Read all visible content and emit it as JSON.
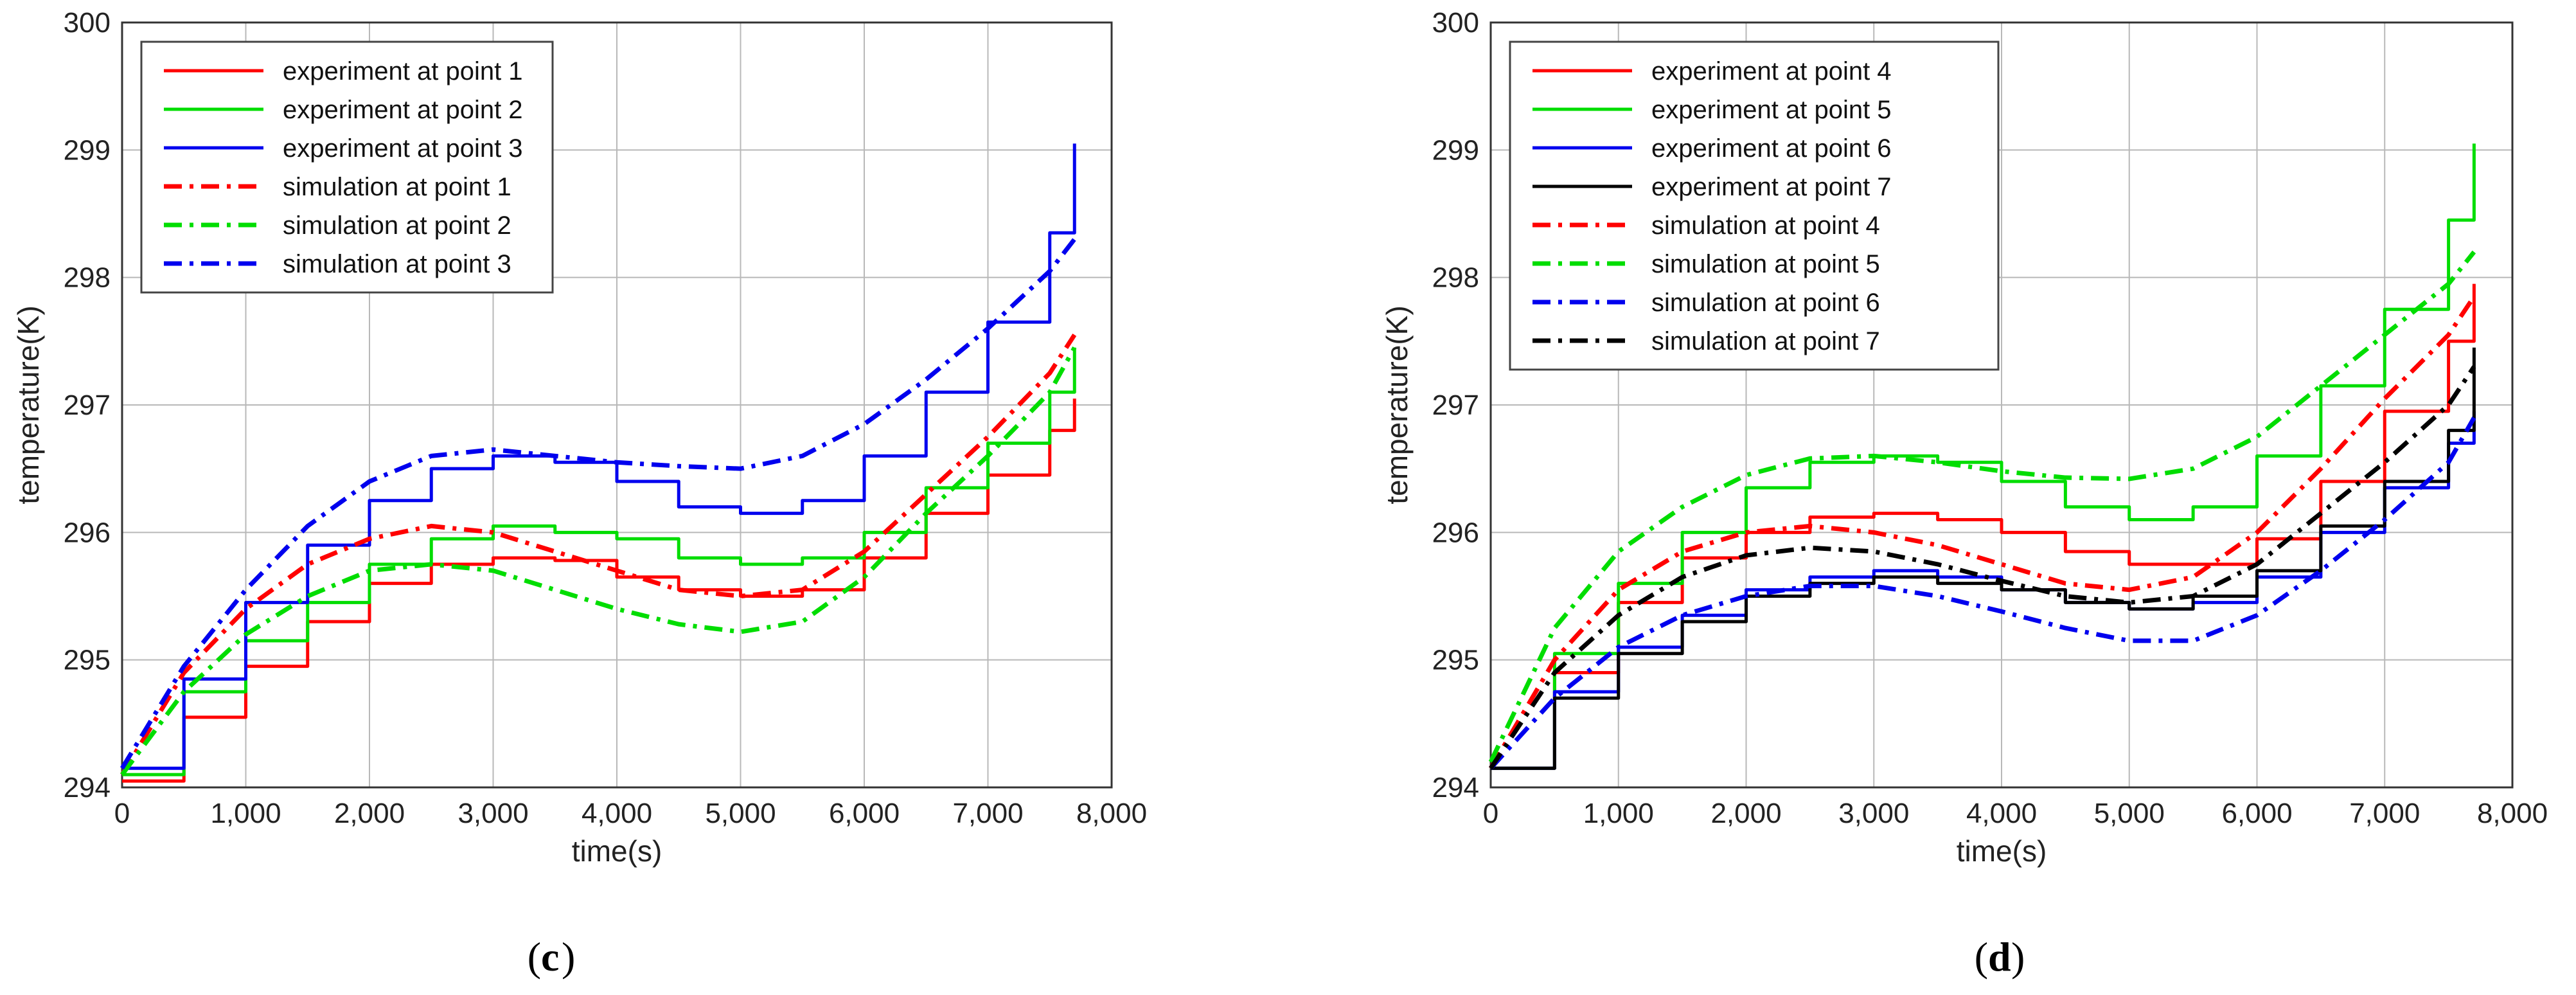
{
  "chart_data": [
    {
      "type": "line",
      "caption": {
        "open": "(",
        "letter": "c",
        "close": ")"
      },
      "xlabel": "time(s)",
      "ylabel": "temperature(K)",
      "xlim": [
        0,
        8000
      ],
      "ylim": [
        294,
        300
      ],
      "xticks": [
        0,
        1000,
        2000,
        3000,
        4000,
        5000,
        6000,
        7000,
        8000
      ],
      "xtick_labels": [
        "0",
        "1,000",
        "2,000",
        "3,000",
        "4,000",
        "5,000",
        "6,000",
        "7,000",
        "8,000"
      ],
      "yticks": [
        294,
        295,
        296,
        297,
        298,
        299,
        300
      ],
      "ytick_labels": [
        "294",
        "295",
        "296",
        "297",
        "298",
        "299",
        "300"
      ],
      "grid": true,
      "legend_position": "top-left",
      "series": [
        {
          "name": "experiment at point 1",
          "color": "#ff0000",
          "style": "solid",
          "x": [
            0,
            500,
            1000,
            1500,
            2000,
            2500,
            3000,
            3500,
            4000,
            4500,
            5000,
            5500,
            6000,
            6500,
            7000,
            7500,
            7700
          ],
          "y": [
            294.05,
            294.55,
            294.95,
            295.3,
            295.6,
            295.75,
            295.8,
            295.78,
            295.65,
            295.55,
            295.5,
            295.55,
            295.8,
            296.15,
            296.45,
            296.8,
            297.05
          ]
        },
        {
          "name": "experiment at point 2",
          "color": "#00dd00",
          "style": "solid",
          "x": [
            0,
            500,
            1000,
            1500,
            2000,
            2500,
            3000,
            3500,
            4000,
            4500,
            5000,
            5500,
            6000,
            6500,
            7000,
            7500,
            7700
          ],
          "y": [
            294.1,
            294.75,
            295.15,
            295.45,
            295.75,
            295.95,
            296.05,
            296.0,
            295.95,
            295.8,
            295.75,
            295.8,
            296.0,
            296.35,
            296.7,
            297.1,
            297.45
          ]
        },
        {
          "name": "experiment at point 3",
          "color": "#0000ee",
          "style": "solid",
          "x": [
            0,
            500,
            1000,
            1500,
            2000,
            2500,
            3000,
            3500,
            4000,
            4500,
            5000,
            5500,
            6000,
            6500,
            7000,
            7500,
            7700
          ],
          "y": [
            294.15,
            294.85,
            295.45,
            295.9,
            296.25,
            296.5,
            296.6,
            296.55,
            296.4,
            296.2,
            296.15,
            296.25,
            296.6,
            297.1,
            297.65,
            298.35,
            299.05
          ]
        },
        {
          "name": "simulation at point 1",
          "color": "#ff0000",
          "style": "dashdot",
          "x": [
            0,
            500,
            1000,
            1500,
            2000,
            2500,
            3000,
            3500,
            4000,
            4500,
            5000,
            5500,
            6000,
            6500,
            7000,
            7500,
            7700
          ],
          "y": [
            294.1,
            294.9,
            295.4,
            295.75,
            295.95,
            296.05,
            296.0,
            295.85,
            295.7,
            295.55,
            295.5,
            295.55,
            295.85,
            296.3,
            296.75,
            297.25,
            297.55
          ]
        },
        {
          "name": "simulation at point 2",
          "color": "#00dd00",
          "style": "dashdot",
          "x": [
            0,
            500,
            1000,
            1500,
            2000,
            2500,
            3000,
            3500,
            4000,
            4500,
            5000,
            5500,
            6000,
            6500,
            7000,
            7500,
            7700
          ],
          "y": [
            294.1,
            294.75,
            295.2,
            295.5,
            295.7,
            295.75,
            295.7,
            295.55,
            295.4,
            295.28,
            295.22,
            295.3,
            295.65,
            296.15,
            296.6,
            297.1,
            297.45
          ]
        },
        {
          "name": "simulation at point 3",
          "color": "#0000ee",
          "style": "dashdot",
          "x": [
            0,
            500,
            1000,
            1500,
            2000,
            2500,
            3000,
            3500,
            4000,
            4500,
            5000,
            5500,
            6000,
            6500,
            7000,
            7500,
            7700
          ],
          "y": [
            294.15,
            294.95,
            295.55,
            296.05,
            296.4,
            296.6,
            296.65,
            296.6,
            296.55,
            296.52,
            296.5,
            296.6,
            296.85,
            297.2,
            297.6,
            298.05,
            298.3
          ]
        }
      ]
    },
    {
      "type": "line",
      "caption": {
        "open": "(",
        "letter": "d",
        "close": ")"
      },
      "xlabel": "time(s)",
      "ylabel": "temperature(K)",
      "xlim": [
        0,
        8000
      ],
      "ylim": [
        294,
        300
      ],
      "xticks": [
        0,
        1000,
        2000,
        3000,
        4000,
        5000,
        6000,
        7000,
        8000
      ],
      "xtick_labels": [
        "0",
        "1,000",
        "2,000",
        "3,000",
        "4,000",
        "5,000",
        "6,000",
        "7,000",
        "8,000"
      ],
      "yticks": [
        294,
        295,
        296,
        297,
        298,
        299,
        300
      ],
      "ytick_labels": [
        "294",
        "295",
        "296",
        "297",
        "298",
        "299",
        "300"
      ],
      "grid": true,
      "legend_position": "top-left",
      "series": [
        {
          "name": "experiment at point 4",
          "color": "#ff0000",
          "style": "solid",
          "x": [
            0,
            500,
            1000,
            1500,
            2000,
            2500,
            3000,
            3500,
            4000,
            4500,
            5000,
            5500,
            6000,
            6500,
            7000,
            7500,
            7700
          ],
          "y": [
            294.15,
            294.9,
            295.45,
            295.8,
            296.0,
            296.12,
            296.15,
            296.1,
            296.0,
            295.85,
            295.75,
            295.75,
            295.95,
            296.4,
            296.95,
            297.5,
            297.95
          ]
        },
        {
          "name": "experiment at point 5",
          "color": "#00dd00",
          "style": "solid",
          "x": [
            0,
            500,
            1000,
            1500,
            2000,
            2500,
            3000,
            3500,
            4000,
            4500,
            5000,
            5500,
            6000,
            6500,
            7000,
            7500,
            7700
          ],
          "y": [
            294.15,
            295.05,
            295.6,
            296.0,
            296.35,
            296.55,
            296.6,
            296.55,
            296.4,
            296.2,
            296.1,
            296.2,
            296.6,
            297.15,
            297.75,
            298.45,
            299.05
          ]
        },
        {
          "name": "experiment at point 6",
          "color": "#0000ee",
          "style": "solid",
          "x": [
            0,
            500,
            1000,
            1500,
            2000,
            2500,
            3000,
            3500,
            4000,
            4500,
            5000,
            5500,
            6000,
            6500,
            7000,
            7500,
            7700
          ],
          "y": [
            294.15,
            294.75,
            295.1,
            295.35,
            295.55,
            295.65,
            295.7,
            295.65,
            295.55,
            295.45,
            295.4,
            295.45,
            295.65,
            296.0,
            296.35,
            296.7,
            296.95
          ]
        },
        {
          "name": "experiment at point 7",
          "color": "#000000",
          "style": "solid",
          "x": [
            0,
            500,
            1000,
            1500,
            2000,
            2500,
            3000,
            3500,
            4000,
            4500,
            5000,
            5500,
            6000,
            6500,
            7000,
            7500,
            7700
          ],
          "y": [
            294.15,
            294.7,
            295.05,
            295.3,
            295.5,
            295.6,
            295.65,
            295.6,
            295.55,
            295.45,
            295.4,
            295.5,
            295.7,
            296.05,
            296.4,
            296.8,
            297.45
          ]
        },
        {
          "name": "simulation at point 4",
          "color": "#ff0000",
          "style": "dashdot",
          "x": [
            0,
            500,
            1000,
            1500,
            2000,
            2500,
            3000,
            3500,
            4000,
            4500,
            5000,
            5500,
            6000,
            6500,
            7000,
            7500,
            7700
          ],
          "y": [
            294.15,
            295.0,
            295.55,
            295.85,
            296.0,
            296.05,
            296.0,
            295.9,
            295.75,
            295.6,
            295.55,
            295.65,
            296.0,
            296.5,
            297.05,
            297.55,
            297.85
          ]
        },
        {
          "name": "simulation at point 5",
          "color": "#00dd00",
          "style": "dashdot",
          "x": [
            0,
            500,
            1000,
            1500,
            2000,
            2500,
            3000,
            3500,
            4000,
            4500,
            5000,
            5500,
            6000,
            6500,
            7000,
            7500,
            7700
          ],
          "y": [
            294.2,
            295.25,
            295.85,
            296.2,
            296.45,
            296.58,
            296.6,
            296.55,
            296.48,
            296.43,
            296.42,
            296.5,
            296.75,
            297.15,
            297.55,
            297.95,
            298.2
          ]
        },
        {
          "name": "simulation at point 6",
          "color": "#0000ee",
          "style": "dashdot",
          "x": [
            0,
            500,
            1000,
            1500,
            2000,
            2500,
            3000,
            3500,
            4000,
            4500,
            5000,
            5500,
            6000,
            6500,
            7000,
            7500,
            7700
          ],
          "y": [
            294.15,
            294.7,
            295.1,
            295.35,
            295.5,
            295.58,
            295.58,
            295.5,
            295.38,
            295.25,
            295.15,
            295.15,
            295.35,
            295.7,
            296.1,
            296.55,
            296.9
          ]
        },
        {
          "name": "simulation at point 7",
          "color": "#000000",
          "style": "dashdot",
          "x": [
            0,
            500,
            1000,
            1500,
            2000,
            2500,
            3000,
            3500,
            4000,
            4500,
            5000,
            5500,
            6000,
            6500,
            7000,
            7500,
            7700
          ],
          "y": [
            294.15,
            294.9,
            295.35,
            295.65,
            295.82,
            295.88,
            295.85,
            295.75,
            295.62,
            295.5,
            295.45,
            295.5,
            295.75,
            296.15,
            296.55,
            297.0,
            297.3
          ]
        }
      ]
    }
  ]
}
